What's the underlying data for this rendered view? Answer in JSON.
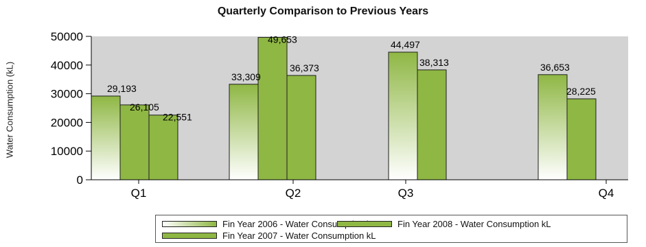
{
  "chart_data": {
    "type": "bar",
    "title": "Quarterly Comparison to Previous Years",
    "xlabel": "",
    "ylabel": "Water Consumption (kL)",
    "ylim": [
      0,
      50000
    ],
    "yticks": [
      "0",
      "10000",
      "20000",
      "30000",
      "40000",
      "50000"
    ],
    "categories": [
      "Q1",
      "Q2",
      "Q3",
      "Q4"
    ],
    "series": [
      {
        "name": "Fin Year 2006 - Water Consumption kL",
        "values": [
          29193,
          33309,
          44497,
          36653
        ],
        "labels": [
          "29,193",
          "33,309",
          "44,497",
          "36,653"
        ],
        "style": "gradient"
      },
      {
        "name": "Fin Year 2007 - Water Consumption kL",
        "values": [
          26105,
          49653,
          null,
          null
        ],
        "labels": [
          "26,105",
          "49,653",
          "",
          ""
        ],
        "style": "solid"
      },
      {
        "name": "Fin Year 2008 - Water Consumption kL",
        "values": [
          22551,
          36373,
          38313,
          28225
        ],
        "labels": [
          "22,551",
          "36,373",
          "38,313",
          "28,225"
        ],
        "style": "solid"
      }
    ],
    "grid": false,
    "legend_position": "bottom",
    "colors": {
      "plot_bg": "#d3d3d3",
      "bar_green": "#8fb744",
      "bar_border": "#1e1e1e",
      "gradient_top": "#8fb744",
      "gradient_bottom": "#ffffff"
    }
  }
}
